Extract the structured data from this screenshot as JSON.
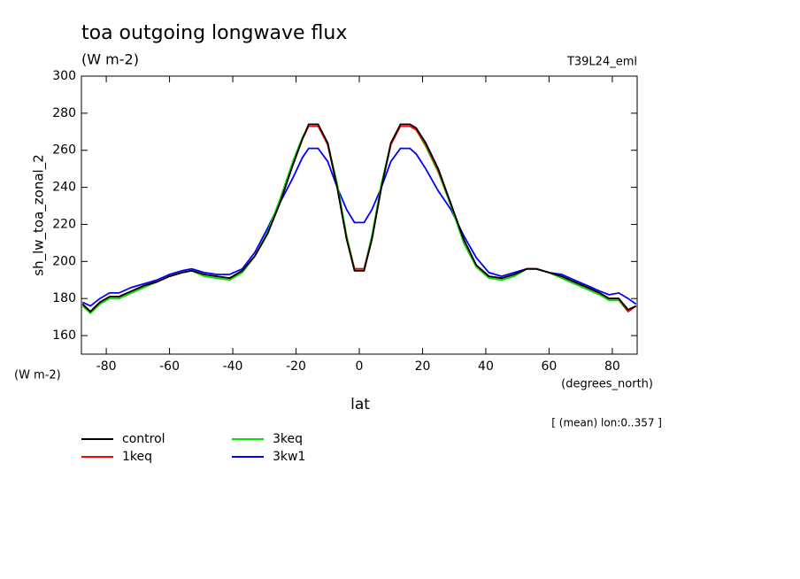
{
  "chart_data": {
    "type": "line",
    "title": "toa outgoing longwave flux",
    "subtitle": "(W m-2)",
    "annotation": "T39L24_eml",
    "y_label": "sh_lw_toa_zonal_2",
    "y_units": "(W m-2)",
    "x_label": "lat",
    "x_units": "(degrees_north)",
    "note": "[ (mean) lon:0..357 ]",
    "x": [
      -87.5,
      -85,
      -82,
      -79,
      -76,
      -72,
      -68,
      -64,
      -60,
      -56,
      -53,
      -49,
      -45,
      -41,
      -37,
      -33,
      -29,
      -25,
      -21,
      -18,
      -16,
      -13,
      -10,
      -7,
      -4,
      -1.5,
      1.5,
      4,
      7,
      10,
      13,
      16,
      18,
      21,
      25,
      29,
      33,
      37,
      41,
      45,
      49,
      53,
      56,
      60,
      64,
      68,
      72,
      76,
      79,
      82,
      85,
      87.5
    ],
    "series": [
      {
        "name": "control",
        "color": "#000000",
        "values": [
          177,
          173,
          178,
          181,
          181,
          184,
          187,
          189,
          192,
          194,
          195,
          193,
          192,
          191,
          195,
          203,
          215,
          232,
          252,
          266,
          274,
          274,
          264,
          240,
          212,
          195,
          195,
          212,
          240,
          264,
          274,
          274,
          272,
          264,
          250,
          231,
          212,
          198,
          192,
          191,
          193,
          196,
          196,
          194,
          192,
          189,
          186,
          183,
          180,
          180,
          174,
          176
        ]
      },
      {
        "name": "1keq",
        "color": "#ff0000",
        "values": [
          177,
          173,
          178,
          181,
          181,
          184,
          187,
          189,
          192,
          194,
          195,
          193,
          192,
          191,
          195,
          203,
          215,
          232,
          252,
          266,
          273,
          273,
          263,
          240,
          212,
          196,
          196,
          212,
          240,
          263,
          273,
          273,
          271,
          263,
          249,
          231,
          212,
          198,
          192,
          191,
          193,
          196,
          196,
          194,
          192,
          189,
          186,
          183,
          180,
          180,
          173,
          176
        ]
      },
      {
        "name": "3keq",
        "color": "#00e000",
        "values": [
          176,
          172,
          177,
          180,
          180,
          183,
          186,
          189,
          192,
          194,
          195,
          192,
          191,
          190,
          194,
          203,
          216,
          234,
          254,
          267,
          273,
          273,
          264,
          242,
          214,
          196,
          196,
          214,
          242,
          264,
          273,
          273,
          271,
          262,
          248,
          230,
          210,
          197,
          191,
          190,
          192,
          196,
          196,
          194,
          191,
          188,
          185,
          182,
          179,
          179,
          173,
          176
        ]
      },
      {
        "name": "3kw1",
        "color": "#0000ff",
        "values": [
          178,
          176,
          180,
          183,
          183,
          186,
          188,
          190,
          193,
          195,
          196,
          194,
          193,
          193,
          196,
          205,
          218,
          232,
          245,
          256,
          261,
          261,
          254,
          240,
          228,
          221,
          221,
          228,
          240,
          254,
          261,
          261,
          258,
          250,
          238,
          228,
          214,
          202,
          194,
          192,
          194,
          196,
          196,
          194,
          193,
          190,
          187,
          184,
          182,
          183,
          180,
          177
        ]
      }
    ],
    "xlim": [
      -87.86,
      87.86
    ],
    "ylim": [
      150,
      300
    ],
    "xticks": [
      -80,
      -60,
      -40,
      -20,
      0,
      20,
      40,
      60,
      80
    ],
    "yticks": [
      160,
      180,
      200,
      220,
      240,
      260,
      280,
      300
    ]
  }
}
